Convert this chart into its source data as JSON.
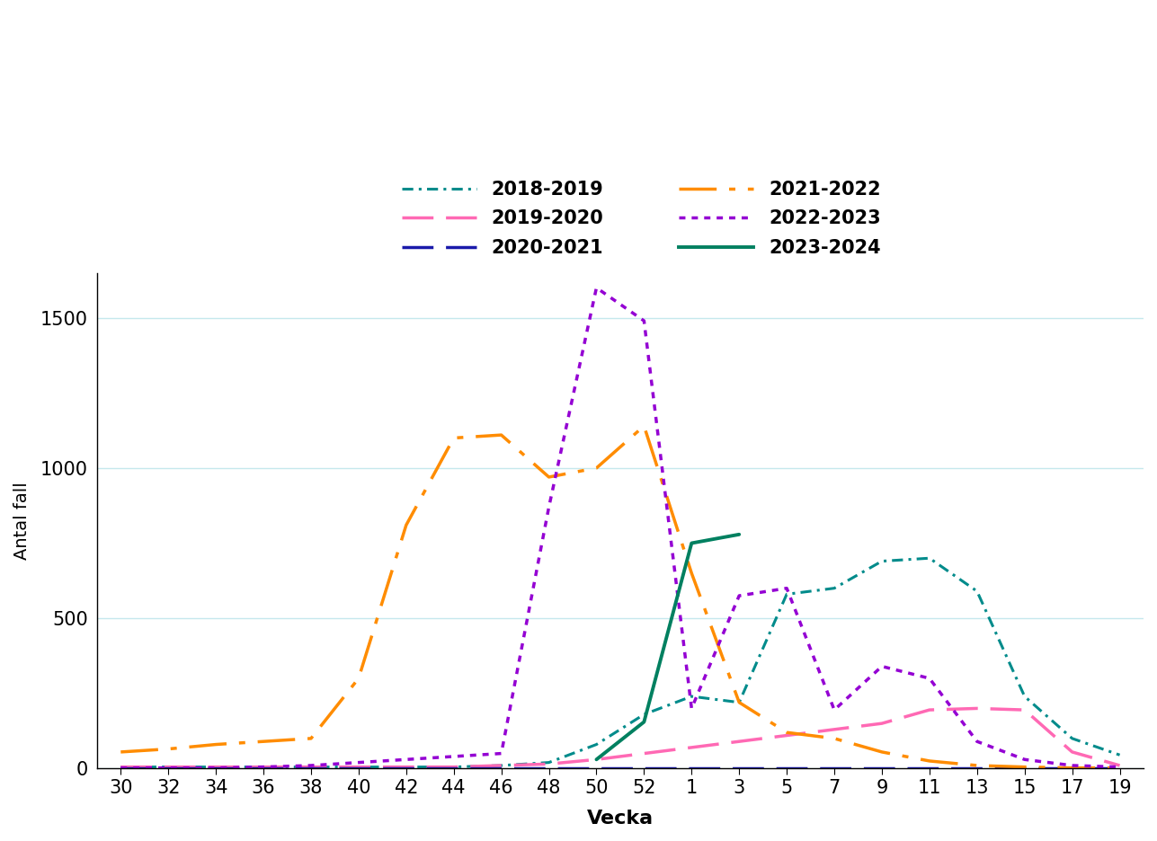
{
  "title": "",
  "xlabel": "Vecka",
  "ylabel": "Antal fall",
  "ylim": [
    0,
    1650
  ],
  "yticks": [
    0,
    500,
    1000,
    1500
  ],
  "x_labels": [
    "30",
    "32",
    "34",
    "36",
    "38",
    "40",
    "42",
    "44",
    "46",
    "48",
    "50",
    "52",
    "1",
    "3",
    "5",
    "7",
    "9",
    "11",
    "13",
    "15",
    "17",
    "19"
  ],
  "background_color": "#ffffff",
  "grid_color": "#c5e8ed",
  "series": [
    {
      "label": "2018-2019",
      "color": "#008b8b",
      "linestyle": "dashdot_dense",
      "linewidth": 2.2,
      "data_y": [
        5,
        5,
        5,
        5,
        5,
        5,
        5,
        5,
        10,
        20,
        80,
        180,
        240,
        220,
        580,
        600,
        690,
        700,
        590,
        240,
        100,
        45
      ]
    },
    {
      "label": "2019-2020",
      "color": "#ff69b4",
      "linestyle": "dashed_long",
      "linewidth": 2.5,
      "data_y": [
        5,
        5,
        5,
        5,
        5,
        5,
        5,
        5,
        10,
        15,
        30,
        50,
        70,
        90,
        110,
        130,
        150,
        195,
        200,
        195,
        55,
        10
      ]
    },
    {
      "label": "2020-2021",
      "color": "#1a1aaa",
      "linestyle": "dashed_long",
      "linewidth": 2.5,
      "data_y": [
        2,
        2,
        2,
        2,
        2,
        2,
        2,
        2,
        2,
        2,
        2,
        2,
        2,
        2,
        2,
        2,
        2,
        2,
        2,
        2,
        2,
        2
      ]
    },
    {
      "label": "2021-2022",
      "color": "#ff8c00",
      "linestyle": "dashdot_long",
      "linewidth": 2.5,
      "data_y": [
        55,
        65,
        80,
        90,
        100,
        300,
        810,
        1100,
        1110,
        970,
        1000,
        1140,
        650,
        220,
        120,
        100,
        55,
        25,
        10,
        5,
        2,
        2
      ]
    },
    {
      "label": "2022-2023",
      "color": "#9400d3",
      "linestyle": "dotted_dense",
      "linewidth": 2.5,
      "data_y": [
        2,
        2,
        2,
        5,
        10,
        20,
        30,
        40,
        50,
        870,
        1600,
        1490,
        200,
        575,
        600,
        195,
        340,
        300,
        90,
        30,
        10,
        5
      ]
    },
    {
      "label": "2023-2024",
      "color": "#008060",
      "linestyle": "solid",
      "linewidth": 2.8,
      "data_y": [
        null,
        null,
        null,
        null,
        null,
        null,
        null,
        null,
        null,
        null,
        30,
        155,
        750,
        779,
        null,
        null,
        null,
        null,
        null,
        null,
        null,
        null
      ]
    }
  ]
}
